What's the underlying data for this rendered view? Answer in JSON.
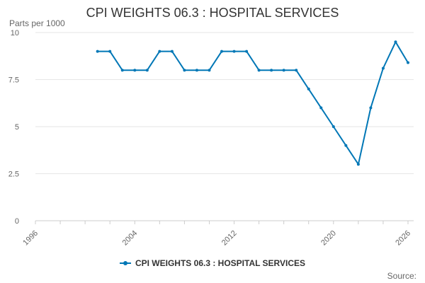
{
  "chart_data": {
    "type": "line",
    "title": "CPI WEIGHTS 06.3 : HOSPITAL SERVICES",
    "units_label": "Parts per 1000",
    "source_label": "Source:",
    "xlim": [
      1996,
      2026
    ],
    "ylim": [
      0,
      10
    ],
    "x_ticks": [
      1996,
      2004,
      2012,
      2020,
      2026
    ],
    "y_ticks": [
      0,
      2.5,
      5,
      7.5,
      10
    ],
    "x_tick_labels": [
      "1996",
      "2004",
      "2012",
      "2020",
      "2026"
    ],
    "y_tick_labels": [
      "0",
      "2.5",
      "5",
      "7.5",
      "10"
    ],
    "grid": true,
    "legend_position": "bottom",
    "series_color": "#0077b6",
    "series": [
      {
        "name": "CPI WEIGHTS 06.3 : HOSPITAL SERVICES",
        "x": [
          2001,
          2002,
          2003,
          2004,
          2005,
          2006,
          2007,
          2008,
          2009,
          2010,
          2011,
          2012,
          2013,
          2014,
          2015,
          2016,
          2017,
          2018,
          2019,
          2020,
          2021,
          2022,
          2023,
          2024,
          2025,
          2026
        ],
        "y": [
          9,
          9,
          8,
          8,
          8,
          9,
          9,
          8,
          8,
          8,
          9,
          9,
          9,
          8,
          8,
          8,
          8,
          7,
          6,
          5,
          4,
          3,
          6,
          8.1,
          9.5,
          8.4
        ]
      }
    ]
  }
}
